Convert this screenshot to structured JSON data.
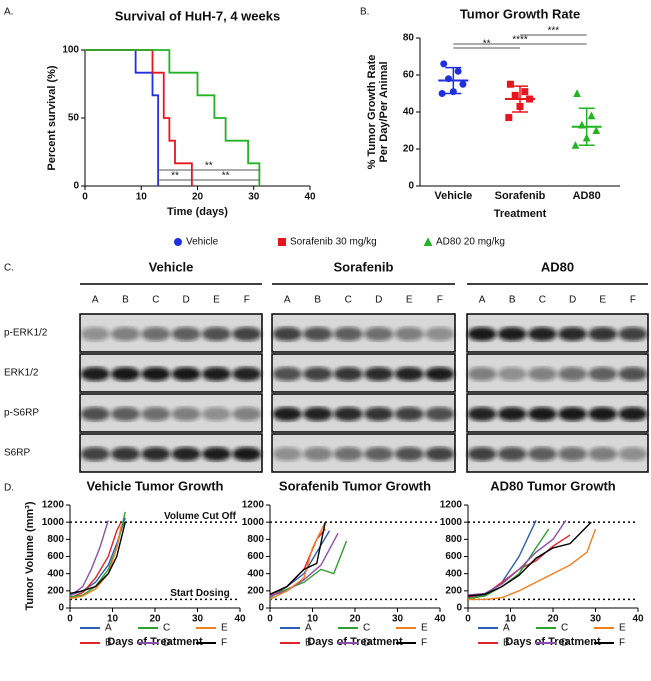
{
  "chart_data": [
    {
      "type": "step",
      "panel": "A.",
      "title": "Survival of HuH-7, 4 weeks",
      "x_label": "Time (days)",
      "y_label": "Percent survival (%)",
      "xlim": [
        0,
        40
      ],
      "xticks": [
        0,
        10,
        20,
        30,
        40
      ],
      "ylim": [
        0,
        100
      ],
      "yticks": [
        0,
        50,
        100
      ],
      "annotations": [
        "**",
        "**",
        "**"
      ],
      "series": [
        {
          "name": "Vehicle",
          "color": "#1f2fe0",
          "marker": "circle",
          "x": [
            0,
            9,
            12,
            13
          ],
          "values": [
            100,
            83.3,
            66.7,
            0
          ]
        },
        {
          "name": "Sorafenib 30 mg/kg",
          "color": "#e8141e",
          "marker": "square",
          "x": [
            0,
            12,
            14,
            15,
            16,
            19
          ],
          "values": [
            100,
            83.3,
            50,
            33.3,
            16.7,
            0
          ]
        },
        {
          "name": "AD80 20 mg/kg",
          "color": "#22b422",
          "marker": "triangle",
          "x": [
            0,
            15,
            20,
            23,
            25,
            29,
            31
          ],
          "values": [
            100,
            83.3,
            66.7,
            50,
            33.3,
            16.7,
            0
          ]
        }
      ]
    },
    {
      "type": "dot",
      "panel": "B.",
      "title": "Tumor Growth Rate",
      "x_label": "Treatment",
      "y_label": [
        "% Tumor Growth Rate",
        "Per Day/Per Animal"
      ],
      "ylim": [
        0,
        80
      ],
      "yticks": [
        0,
        20,
        40,
        60,
        80
      ],
      "categories": [
        "Vehicle",
        "Sorafenib",
        "AD80"
      ],
      "annotations": [
        "**",
        "****",
        "***"
      ],
      "groups": [
        {
          "color": "#1f2fe0",
          "marker": "circle",
          "values": [
            66,
            62,
            58,
            55,
            51,
            50
          ],
          "mean": 57,
          "sd": 7
        },
        {
          "color": "#e8141e",
          "marker": "square",
          "values": [
            55,
            51,
            49,
            47,
            43,
            37
          ],
          "mean": 47,
          "sd": 7
        },
        {
          "color": "#22b422",
          "marker": "triangle",
          "values": [
            50,
            38,
            33,
            30,
            26,
            22
          ],
          "mean": 32,
          "sd": 10
        }
      ]
    },
    {
      "type": "line",
      "panel": "D.",
      "title": "Vehicle Tumor Growth",
      "x_label": "Days of Treatment",
      "y_label": "Tumor Volume (mm³)",
      "xlim": [
        0,
        40
      ],
      "xticks": [
        0,
        10,
        20,
        30,
        40
      ],
      "ylim": [
        0,
        1200
      ],
      "yticks": [
        0,
        200,
        400,
        600,
        800,
        1000,
        1200
      ],
      "reference_lines": [
        {
          "value": 1000,
          "label": "Volume Cut Off"
        },
        {
          "value": 100,
          "label": "Start Dosing"
        }
      ],
      "series": [
        {
          "name": "A",
          "color": "#2b5fb4",
          "x": [
            0,
            3,
            6,
            9,
            11,
            13
          ],
          "values": [
            150,
            200,
            300,
            500,
            750,
            1050
          ]
        },
        {
          "name": "B",
          "color": "#e0242b",
          "x": [
            0,
            3,
            6,
            9,
            11,
            12
          ],
          "values": [
            120,
            180,
            350,
            600,
            900,
            1000
          ]
        },
        {
          "name": "C",
          "color": "#2ca02c",
          "x": [
            0,
            3,
            6,
            9,
            11,
            13
          ],
          "values": [
            130,
            150,
            250,
            450,
            700,
            1120
          ]
        },
        {
          "name": "D",
          "color": "#8c4fb0",
          "x": [
            0,
            3,
            5,
            7,
            9
          ],
          "values": [
            140,
            250,
            450,
            700,
            1020
          ]
        },
        {
          "name": "E",
          "color": "#f07f1e",
          "x": [
            0,
            3,
            6,
            9,
            11,
            12
          ],
          "values": [
            110,
            140,
            220,
            400,
            700,
            950
          ]
        },
        {
          "name": "F",
          "color": "#000000",
          "x": [
            0,
            3,
            6,
            9,
            11,
            13
          ],
          "values": [
            170,
            200,
            250,
            400,
            600,
            1000
          ]
        }
      ]
    },
    {
      "type": "line",
      "title": "Sorafenib Tumor Growth",
      "x_label": "Days of Treatment",
      "xlim": [
        0,
        40
      ],
      "xticks": [
        0,
        10,
        20,
        30,
        40
      ],
      "ylim": [
        0,
        1200
      ],
      "yticks": [
        0,
        200,
        400,
        600,
        800,
        1000,
        1200
      ],
      "reference_lines": [
        {
          "value": 1000
        },
        {
          "value": 100
        }
      ],
      "series": [
        {
          "name": "A",
          "color": "#2b5fb4",
          "x": [
            0,
            4,
            8,
            11,
            14
          ],
          "values": [
            120,
            250,
            400,
            650,
            900
          ]
        },
        {
          "name": "B",
          "color": "#e0242b",
          "x": [
            0,
            4,
            8,
            11,
            13
          ],
          "values": [
            150,
            250,
            450,
            800,
            920
          ]
        },
        {
          "name": "C",
          "color": "#2ca02c",
          "x": [
            0,
            4,
            8,
            12,
            15,
            18
          ],
          "values": [
            130,
            220,
            300,
            450,
            400,
            780
          ]
        },
        {
          "name": "D",
          "color": "#8c4fb0",
          "x": [
            0,
            4,
            8,
            12,
            16
          ],
          "values": [
            140,
            200,
            330,
            500,
            870
          ]
        },
        {
          "name": "E",
          "color": "#f07f1e",
          "x": [
            0,
            4,
            8,
            10,
            13
          ],
          "values": [
            100,
            200,
            350,
            700,
            1000
          ]
        },
        {
          "name": "F",
          "color": "#000000",
          "x": [
            0,
            4,
            8,
            11,
            13
          ],
          "values": [
            160,
            250,
            450,
            520,
            1000
          ]
        }
      ]
    },
    {
      "type": "line",
      "title": "AD80 Tumor Growth",
      "x_label": "Days of Treatment",
      "xlim": [
        0,
        40
      ],
      "xticks": [
        0,
        10,
        20,
        30,
        40
      ],
      "ylim": [
        0,
        1200
      ],
      "yticks": [
        0,
        200,
        400,
        600,
        800,
        1000,
        1200
      ],
      "reference_lines": [
        {
          "value": 1000
        },
        {
          "value": 100
        }
      ],
      "series": [
        {
          "name": "A",
          "color": "#2b5fb4",
          "x": [
            0,
            4,
            8,
            12,
            16
          ],
          "values": [
            120,
            150,
            300,
            600,
            1020
          ]
        },
        {
          "name": "B",
          "color": "#e0242b",
          "x": [
            0,
            4,
            8,
            12,
            16,
            20,
            24
          ],
          "values": [
            130,
            160,
            300,
            450,
            550,
            720,
            850
          ]
        },
        {
          "name": "C",
          "color": "#2ca02c",
          "x": [
            0,
            4,
            8,
            12,
            16,
            19
          ],
          "values": [
            110,
            140,
            250,
            400,
            700,
            920
          ]
        },
        {
          "name": "D",
          "color": "#8c4fb0",
          "x": [
            0,
            4,
            8,
            12,
            16,
            20,
            23
          ],
          "values": [
            150,
            170,
            280,
            450,
            650,
            800,
            1020
          ]
        },
        {
          "name": "E",
          "color": "#f07f1e",
          "x": [
            0,
            4,
            8,
            12,
            16,
            20,
            24,
            28,
            30
          ],
          "values": [
            100,
            100,
            120,
            200,
            300,
            400,
            500,
            650,
            920
          ]
        },
        {
          "name": "F",
          "color": "#000000",
          "x": [
            0,
            4,
            8,
            12,
            16,
            20,
            24,
            29
          ],
          "values": [
            140,
            160,
            250,
            380,
            580,
            700,
            750,
            1000
          ]
        }
      ]
    }
  ],
  "blot": {
    "panel": "C.",
    "groups": [
      "Vehicle",
      "Sorafenib",
      "AD80"
    ],
    "lanes": [
      "A",
      "B",
      "C",
      "D",
      "E",
      "F"
    ],
    "rows": [
      "p-ERK1/2",
      "ERK1/2",
      "p-S6RP",
      "S6RP"
    ]
  }
}
